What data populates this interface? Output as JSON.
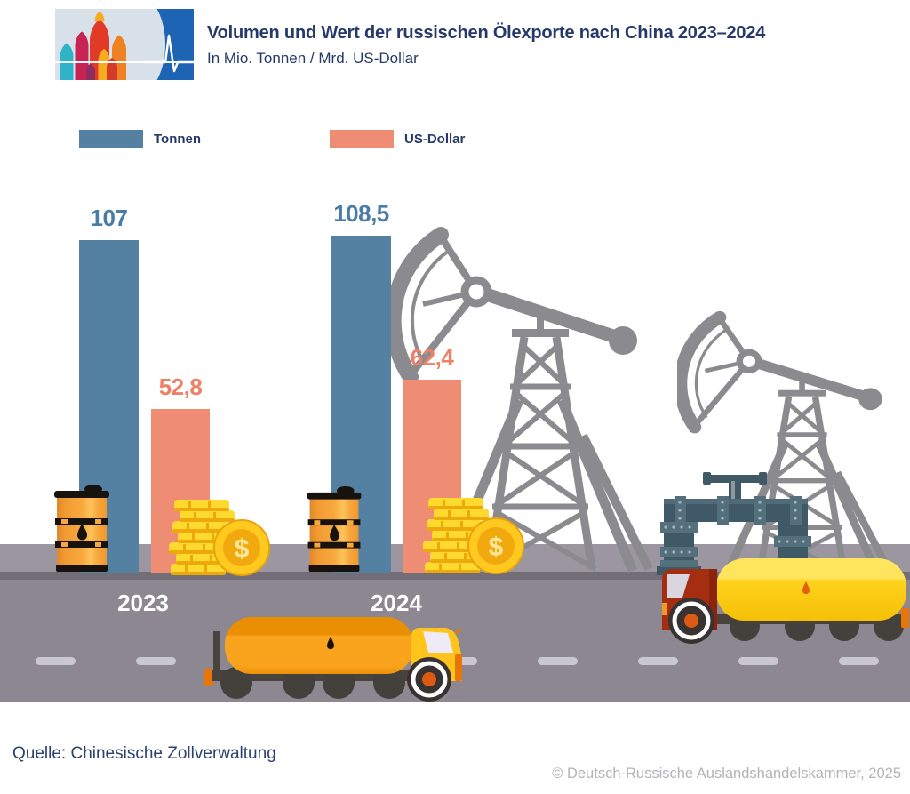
{
  "header": {
    "title": "Volumen und Wert der russischen Ölexporte nach China 2023–2024",
    "subtitle": "In Mio. Tonnen / Mrd. US-Dollar"
  },
  "legend": [
    {
      "label": "Tonnen",
      "color": "#5481A2"
    },
    {
      "label": "US-Dollar",
      "color": "#EF8D74"
    }
  ],
  "chart_data": {
    "type": "bar",
    "title": "Volumen und Wert der russischen Ölexporte nach China 2023–2024",
    "subtitle": "In Mio. Tonnen / Mrd. US-Dollar",
    "categories": [
      "2023",
      "2024"
    ],
    "series": [
      {
        "name": "Tonnen",
        "unit": "Mio. Tonnen",
        "color": "#5481A2",
        "label_color": "#4A7CA8",
        "values": [
          107,
          108.5
        ],
        "labels": [
          "107",
          "108,5"
        ]
      },
      {
        "name": "US-Dollar",
        "unit": "Mrd. US-Dollar",
        "color": "#EF8D74",
        "label_color": "#EE8066",
        "values": [
          52.8,
          62.4
        ],
        "labels": [
          "52,8",
          "62,4"
        ]
      }
    ],
    "ylim": [
      0,
      120
    ],
    "grid": false,
    "legend_position": "top-left",
    "value_labels": "above-bars"
  },
  "footer": {
    "source": "Quelle: Chinesische Zollverwaltung",
    "copyright": "© Deutsch-Russische Auslandshandelskammer, 2025"
  },
  "decor": {
    "coin_symbol": "$",
    "icons": [
      "cathedral-logo-icon",
      "heartbeat-icon",
      "pumpjack-icon",
      "oil-barrel-icon",
      "coin-stack-icon",
      "dollar-coin-icon",
      "pipeline-valve-icon",
      "tanker-truck-icon",
      "road-dash"
    ],
    "colors": {
      "logo_blue": "#1D64B5",
      "logo_light": "#D8E1E9",
      "pump_gray": "#8B8B8F",
      "road": "#8D8791",
      "sidewalk": "#9C96A1",
      "road_edge": "#736D78",
      "road_dash": "#C9C7CF",
      "barrel_orange": "#F7A83C",
      "gold": "#FFC91F",
      "gold_dark": "#EDA90A",
      "pipeline_slate": "#3F5A66",
      "truck_a_tank": "#F9A41C",
      "truck_a_cab": "#FFC41C",
      "truck_b_tank": "#FFD21C",
      "truck_b_cab": "#A52D10"
    }
  }
}
